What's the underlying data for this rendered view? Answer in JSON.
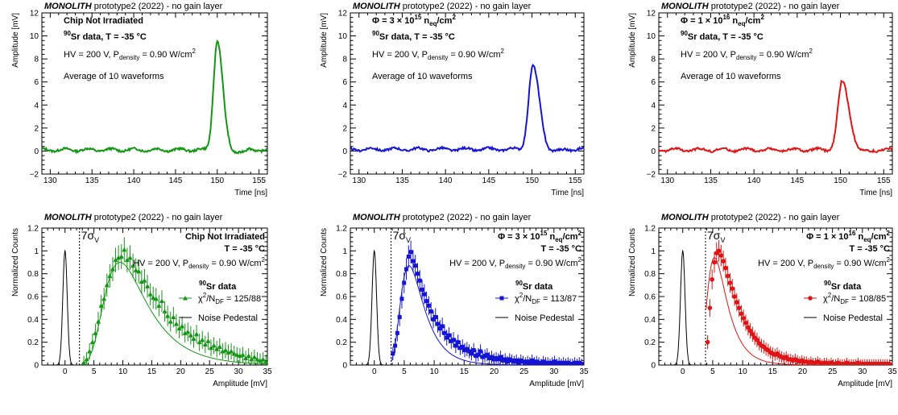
{
  "figure": {
    "header_bold": "MONOLITH",
    "header_rest": " prototype2 (2022) - no gain layer"
  },
  "chart_data": [
    {
      "type": "line",
      "id": "wf-notirr",
      "color": "#139613",
      "xlabel": "Time [ns]",
      "ylabel": "Amplitude [mV]",
      "xlim": [
        129,
        156
      ],
      "ylim": [
        -2,
        12
      ],
      "xticks": [
        130,
        135,
        140,
        145,
        150,
        155
      ],
      "yticks": [
        -2,
        0,
        2,
        4,
        6,
        8,
        10,
        12
      ],
      "labels": {
        "l1": "Chip Not Irradiated",
        "l2_iso": "90",
        "l2": "Sr data, T = -35 °C",
        "hv": "HV = 200 V, P",
        "hv_sub": "density",
        "hv_end": " = 0.90 W/cm",
        "hv_sup": "2",
        "avg": "Average of 10 waveforms"
      },
      "peak": {
        "t0": 150.0,
        "amp": 9.5,
        "rise": 0.45,
        "fall": 0.65,
        "baseline": 0.1
      }
    },
    {
      "type": "line",
      "id": "wf-3e15",
      "color": "#1414d4",
      "xlabel": "Time [ns]",
      "ylabel": "Amplitude [mV]",
      "xlim": [
        129,
        156
      ],
      "ylim": [
        -2,
        12
      ],
      "xticks": [
        130,
        135,
        140,
        145,
        150,
        155
      ],
      "yticks": [
        -2,
        0,
        2,
        4,
        6,
        8,
        10,
        12
      ],
      "labels": {
        "phi": "Φ = 3 × 10",
        "phi_exp": "15",
        "phi_unit": " n",
        "phi_sub": "eq",
        "phi_end": "/cm",
        "phi_sup": "2",
        "l2_iso": "90",
        "l2": "Sr data, T = -35 °C",
        "hv": "HV = 200 V, P",
        "hv_sub": "density",
        "hv_end": " = 0.90 W/cm",
        "hv_sup": "2",
        "avg": "Average of 10 waveforms"
      },
      "peak": {
        "t0": 150.1,
        "amp": 7.2,
        "rise": 0.5,
        "fall": 0.75,
        "baseline": 0.15
      }
    },
    {
      "type": "line",
      "id": "wf-1e16",
      "color": "#e01414",
      "xlabel": "Time [ns]",
      "ylabel": "Amplitude [mV]",
      "xlim": [
        129,
        156
      ],
      "ylim": [
        -2,
        12
      ],
      "xticks": [
        130,
        135,
        140,
        145,
        150,
        155
      ],
      "yticks": [
        -2,
        0,
        2,
        4,
        6,
        8,
        10,
        12
      ],
      "labels": {
        "phi": "Φ = 1 × 10",
        "phi_exp": "16",
        "phi_unit": " n",
        "phi_sub": "eq",
        "phi_end": "/cm",
        "phi_sup": "2",
        "l2_iso": "90",
        "l2": "Sr data, T = -35 °C",
        "hv": "HV = 200 V, P",
        "hv_sub": "density",
        "hv_end": " = 0.90 W/cm",
        "hv_sup": "2",
        "avg": "Average of 10 waveforms"
      },
      "peak": {
        "t0": 150.2,
        "amp": 5.9,
        "rise": 0.5,
        "fall": 0.8,
        "baseline": 0.1
      }
    },
    {
      "type": "scatter",
      "id": "amp-notirr",
      "color": "#139613",
      "marker": "triangle",
      "xlabel": "Amplitude [mV]",
      "ylabel": "Normalized Counts",
      "xlim": [
        -4,
        35
      ],
      "ylim": [
        0,
        1.2
      ],
      "xticks": [
        0,
        5,
        10,
        15,
        20,
        25,
        30,
        35
      ],
      "yticks": [
        0,
        0.2,
        0.4,
        0.6,
        0.8,
        1,
        1.2
      ],
      "threshold": 2.5,
      "threshold_label": "7σ",
      "threshold_sub": "V",
      "labels": {
        "l1": "Chip Not Irradiated",
        "l2": "T = -35 °C",
        "hv": "HV = 200 V, P",
        "hv_sub": "density",
        "hv_end": " = 0.90 W/cm",
        "hv_sup": "2"
      },
      "legend": {
        "iso": "90",
        "name": "Sr data",
        "chi": "χ",
        "chi_sup": "2",
        "chi_mid": "/N",
        "chi_sub": "DF",
        "chi_val": " = 125/88",
        "noise": "Noise Pedestal"
      },
      "landau": {
        "mpv": 9.5,
        "width": 2.5,
        "peak": 0.9,
        "start": 3.0
      },
      "x_start": 3.25,
      "x_step": 0.5,
      "x_end": 34.8,
      "err_base": 0.05,
      "points_y": [
        0.02,
        0.05,
        0.12,
        0.2,
        0.28,
        0.38,
        0.52,
        0.58,
        0.7,
        0.78,
        0.84,
        0.92,
        0.94,
        0.95,
        1.01,
        0.92,
        0.94,
        0.87,
        0.83,
        0.82,
        0.73,
        0.74,
        0.69,
        0.62,
        0.59,
        0.58,
        0.52,
        0.56,
        0.47,
        0.43,
        0.38,
        0.42,
        0.36,
        0.32,
        0.34,
        0.28,
        0.29,
        0.26,
        0.23,
        0.27,
        0.2,
        0.22,
        0.18,
        0.21,
        0.15,
        0.17,
        0.14,
        0.16,
        0.12,
        0.13,
        0.11,
        0.12,
        0.1,
        0.09,
        0.08,
        0.09,
        0.06,
        0.08,
        0.05,
        0.07,
        0.05,
        0.04,
        0.05,
        0.03
      ]
    },
    {
      "type": "scatter",
      "id": "amp-3e15",
      "color": "#1414d4",
      "marker": "square",
      "xlabel": "Amplitude [mV]",
      "ylabel": "Normalized Counts",
      "xlim": [
        -4,
        35
      ],
      "ylim": [
        0,
        1.2
      ],
      "xticks": [
        0,
        5,
        10,
        15,
        20,
        25,
        30,
        35
      ],
      "yticks": [
        0,
        0.2,
        0.4,
        0.6,
        0.8,
        1,
        1.2
      ],
      "threshold": 2.8,
      "threshold_label": "7σ",
      "threshold_sub": "V",
      "labels": {
        "l1_phi": "Φ = 3 × 10",
        "l1_exp": "15",
        "l1_unit": " n",
        "l1_sub": "eq",
        "l1_end": "/cm",
        "l1_sup": "2",
        "l2": "T = -35 °C",
        "hv": "HV = 200 V, P",
        "hv_sub": "density",
        "hv_end": " = 0.90 W/cm",
        "hv_sup": "2"
      },
      "legend": {
        "iso": "90",
        "name": "Sr data",
        "chi": "χ",
        "chi_sup": "2",
        "chi_mid": "/N",
        "chi_sub": "DF",
        "chi_val": " = 113/87",
        "noise": "Noise Pedestal"
      },
      "landau": {
        "mpv": 5.8,
        "width": 1.3,
        "peak": 0.87,
        "start": 2.8
      },
      "x_start": 3.1,
      "x_step": 0.375,
      "x_end": 34.8,
      "err_base": 0.04,
      "points_y": [
        0.1,
        0.17,
        0.28,
        0.42,
        0.58,
        0.72,
        0.84,
        0.95,
        0.99,
        0.91,
        0.87,
        0.8,
        0.74,
        0.66,
        0.62,
        0.56,
        0.52,
        0.47,
        0.4,
        0.42,
        0.36,
        0.32,
        0.34,
        0.28,
        0.24,
        0.26,
        0.21,
        0.22,
        0.17,
        0.2,
        0.15,
        0.16,
        0.13,
        0.14,
        0.12,
        0.1,
        0.13,
        0.08,
        0.09,
        0.12,
        0.07,
        0.08,
        0.09,
        0.06,
        0.07,
        0.05,
        0.06,
        0.05,
        0.07,
        0.04,
        0.05,
        0.03,
        0.05,
        0.04,
        0.03,
        0.04,
        0.02,
        0.04,
        0.03,
        0.02,
        0.03,
        0.02,
        0.04,
        0.02,
        0.03,
        0.02,
        0.01,
        0.03,
        0.02,
        0.02,
        0.01,
        0.02,
        0.03,
        0.01,
        0.02,
        0.01,
        0.02,
        0.01,
        0.02,
        0.01,
        0.01,
        0.02,
        0.01,
        0.02,
        0.01
      ]
    },
    {
      "type": "scatter",
      "id": "amp-1e16",
      "color": "#e01414",
      "marker": "circle",
      "xlabel": "Amplitude [mV]",
      "ylabel": "Normalized Counts",
      "xlim": [
        -4,
        35
      ],
      "ylim": [
        0,
        1.2
      ],
      "xticks": [
        0,
        5,
        10,
        15,
        20,
        25,
        30,
        35
      ],
      "yticks": [
        0,
        0.2,
        0.4,
        0.6,
        0.8,
        1,
        1.2
      ],
      "threshold": 3.8,
      "threshold_label": "7σ",
      "threshold_sub": "V",
      "labels": {
        "l1_phi": "Φ = 1 × 10",
        "l1_exp": "16",
        "l1_unit": " n",
        "l1_sub": "eq",
        "l1_end": "/cm",
        "l1_sup": "2",
        "l2": "T = -35 °C",
        "hv": "HV = 200 V, P",
        "hv_sub": "density",
        "hv_end": " = 0.90 W/cm",
        "hv_sup": "2"
      },
      "legend": {
        "iso": "90",
        "name": "Sr data",
        "chi": "χ",
        "chi_sup": "2",
        "chi_mid": "/N",
        "chi_sub": "DF",
        "chi_val": " = 108/85",
        "noise": "Noise Pedestal"
      },
      "landau": {
        "mpv": 5.3,
        "width": 1.1,
        "peak": 0.94,
        "start": 3.9
      },
      "x_start": 4.15,
      "x_step": 0.375,
      "x_end": 34.8,
      "err_base": 0.035,
      "points_y": [
        0.2,
        0.5,
        0.75,
        0.9,
        0.98,
        1.0,
        0.96,
        0.91,
        0.85,
        0.78,
        0.72,
        0.67,
        0.6,
        0.55,
        0.5,
        0.45,
        0.41,
        0.37,
        0.33,
        0.3,
        0.27,
        0.24,
        0.22,
        0.19,
        0.17,
        0.16,
        0.14,
        0.13,
        0.11,
        0.1,
        0.09,
        0.1,
        0.08,
        0.07,
        0.06,
        0.07,
        0.05,
        0.05,
        0.04,
        0.05,
        0.04,
        0.03,
        0.04,
        0.03,
        0.03,
        0.02,
        0.03,
        0.02,
        0.02,
        0.03,
        0.02,
        0.01,
        0.02,
        0.02,
        0.01,
        0.02,
        0.01,
        0.01,
        0.02,
        0.01,
        0.01,
        0.01,
        0.02,
        0.01,
        0.01,
        0.01,
        0.01,
        0.02,
        0.01,
        0.01,
        0.01,
        0.01,
        0.01,
        0.01,
        0.01,
        0.01,
        0.01,
        0.01,
        0.01,
        0.01,
        0.01,
        0.01
      ]
    }
  ]
}
